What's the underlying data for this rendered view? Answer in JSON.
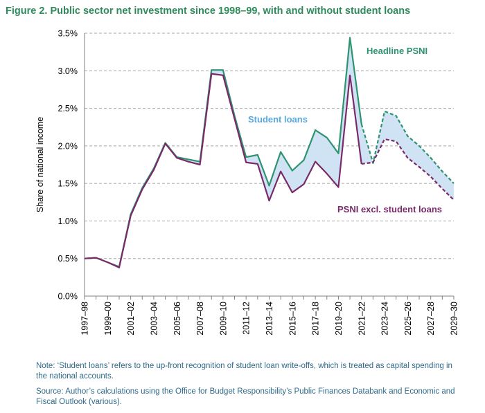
{
  "title": "Figure 2. Public sector net investment since 1998–99, with and without student loans",
  "note": "Note: ‘Student loans’ refers to the up-front recognition of student loan write-offs, which is treated as capital spending in the national accounts.",
  "source": "Source: Author’s calculations using the Office for Budget Responsibility’s Public Finances Databank and Economic and Fiscal Outlook (various).",
  "chart_data": {
    "type": "line",
    "title": "Figure 2. Public sector net investment since 1998–99, with and without student loans",
    "xlabel": "",
    "ylabel": "Share of national income",
    "ylim": [
      0,
      3.5
    ],
    "yticks": [
      "0.0%",
      "0.5%",
      "1.0%",
      "1.5%",
      "2.0%",
      "2.5%",
      "3.0%",
      "3.5%"
    ],
    "grid": "horizontal dashed",
    "categories": [
      "1997–98",
      "1998–99",
      "1999–00",
      "2000–01",
      "2001–02",
      "2002–03",
      "2003–04",
      "2004–05",
      "2005–06",
      "2006–07",
      "2007–08",
      "2008–09",
      "2009–10",
      "2010–11",
      "2011–12",
      "2012–13",
      "2013–14",
      "2014–15",
      "2015–16",
      "2016–17",
      "2017–18",
      "2018–19",
      "2019–20",
      "2020–21",
      "2021–22",
      "2022–23",
      "2023–24",
      "2024–25",
      "2025–26",
      "2026–27",
      "2027–28",
      "2028–29",
      "2029–30"
    ],
    "tick_labels": [
      "1997–98",
      "1999–00",
      "2001–02",
      "2003–04",
      "2005–06",
      "2007–08",
      "2009–10",
      "2011–12",
      "2013–14",
      "2015–16",
      "2017–18",
      "2019–20",
      "2021–22",
      "2023–24",
      "2025–26",
      "2027–28",
      "2029–30"
    ],
    "forecast_start": "2021–22",
    "series": [
      {
        "name": "Headline PSNI",
        "color": "#2e9470",
        "values": [
          0.5,
          0.51,
          0.45,
          0.39,
          1.09,
          1.44,
          1.7,
          2.04,
          1.85,
          1.82,
          1.79,
          3.01,
          3.01,
          2.4,
          1.85,
          1.88,
          1.47,
          1.92,
          1.67,
          1.81,
          2.21,
          2.11,
          1.9,
          3.44,
          2.29,
          1.77,
          2.46,
          2.4,
          2.13,
          2.0,
          1.84,
          1.66,
          1.5
        ]
      },
      {
        "name": "PSNI excl. student loans",
        "color": "#7a2a6a",
        "values": [
          0.5,
          0.51,
          0.45,
          0.38,
          1.07,
          1.42,
          1.68,
          2.03,
          1.84,
          1.79,
          1.75,
          2.96,
          2.94,
          2.36,
          1.78,
          1.76,
          1.27,
          1.66,
          1.38,
          1.49,
          1.79,
          1.63,
          1.45,
          2.94,
          1.76,
          1.78,
          2.09,
          2.06,
          1.84,
          1.72,
          1.59,
          1.43,
          1.28
        ]
      }
    ],
    "annotations": [
      "Headline PSNI",
      "Student loans",
      "PSNI excl. student loans"
    ],
    "fill_color": "#cfe3f4",
    "fill_label_color": "#5aa9dc"
  }
}
